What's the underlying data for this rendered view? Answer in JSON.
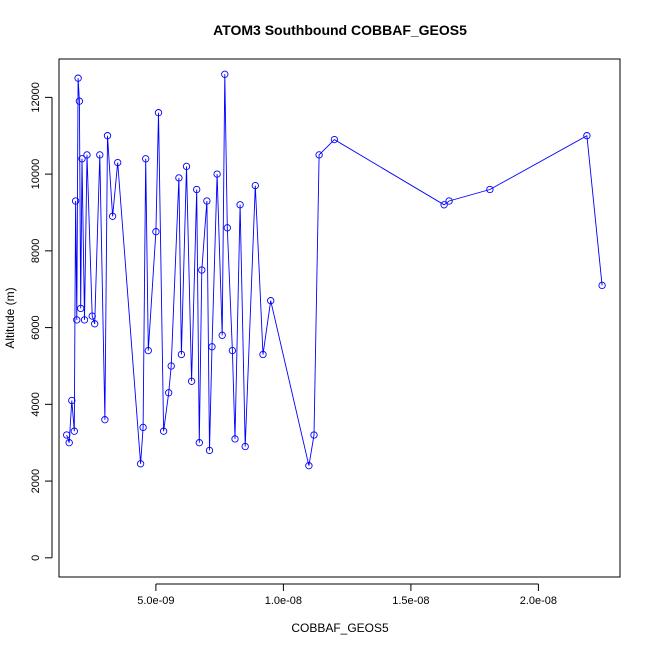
{
  "chart_data": {
    "type": "line",
    "title": "ATOM3 Southbound COBBAF_GEOS5",
    "xlabel": "COBBAF_GEOS5",
    "ylabel": "Altitude (m)",
    "xlim": [
      1.2e-09,
      2.32e-08
    ],
    "ylim": [
      -500,
      13000
    ],
    "xticks": [
      {
        "value": 5e-09,
        "label": "5.0e-09"
      },
      {
        "value": 1e-08,
        "label": "1.0e-08"
      },
      {
        "value": 1.5e-08,
        "label": "1.5e-08"
      },
      {
        "value": 2e-08,
        "label": "2.0e-08"
      }
    ],
    "yticks": [
      {
        "value": 0,
        "label": "0"
      },
      {
        "value": 2000,
        "label": "2000"
      },
      {
        "value": 4000,
        "label": "4000"
      },
      {
        "value": 6000,
        "label": "6000"
      },
      {
        "value": 8000,
        "label": "8000"
      },
      {
        "value": 10000,
        "label": "10000"
      },
      {
        "value": 12000,
        "label": "12000"
      }
    ],
    "line_color": "#0000ff",
    "marker": "open-circle",
    "grid": false,
    "series": [
      {
        "x": [
          1.5e-09,
          1.6e-09,
          1.7e-09,
          1.8e-09,
          1.85e-09,
          1.9e-09,
          1.95e-09,
          2e-09,
          2.05e-09,
          2.1e-09,
          2.2e-09,
          2.3e-09,
          2.5e-09,
          2.6e-09,
          2.8e-09,
          3e-09,
          3.1e-09,
          3.3e-09,
          3.5e-09,
          4.4e-09,
          4.5e-09,
          4.6e-09,
          4.7e-09,
          5e-09,
          5.1e-09,
          5.3e-09,
          5.5e-09,
          5.6e-09,
          5.9e-09,
          6e-09,
          6.2e-09,
          6.4e-09,
          6.6e-09,
          6.7e-09,
          6.8e-09,
          7e-09,
          7.1e-09,
          7.2e-09,
          7.4e-09,
          7.6e-09,
          7.7e-09,
          7.8e-09,
          8e-09,
          8.1e-09,
          8.3e-09,
          8.5e-09,
          8.9e-09,
          9.2e-09,
          9.5e-09,
          1.1e-08,
          1.12e-08,
          1.14e-08,
          1.2e-08,
          1.63e-08,
          1.65e-08,
          1.81e-08,
          2.19e-08,
          2.25e-08
        ],
        "y": [
          3200,
          3000,
          4100,
          3300,
          9300,
          6200,
          12500,
          11900,
          6500,
          10400,
          6200,
          10500,
          6300,
          6100,
          10500,
          3600,
          11000,
          8900,
          10300,
          2450,
          3400,
          10400,
          5400,
          8500,
          11600,
          3300,
          4300,
          5000,
          9900,
          5300,
          10200,
          4600,
          9600,
          3000,
          7500,
          9300,
          2800,
          5500,
          10000,
          5800,
          12600,
          8600,
          5400,
          3100,
          9200,
          2900,
          9700,
          5300,
          6700,
          2400,
          3200,
          10500,
          10900,
          9200,
          9300,
          9600,
          11000,
          7100
        ]
      }
    ]
  }
}
